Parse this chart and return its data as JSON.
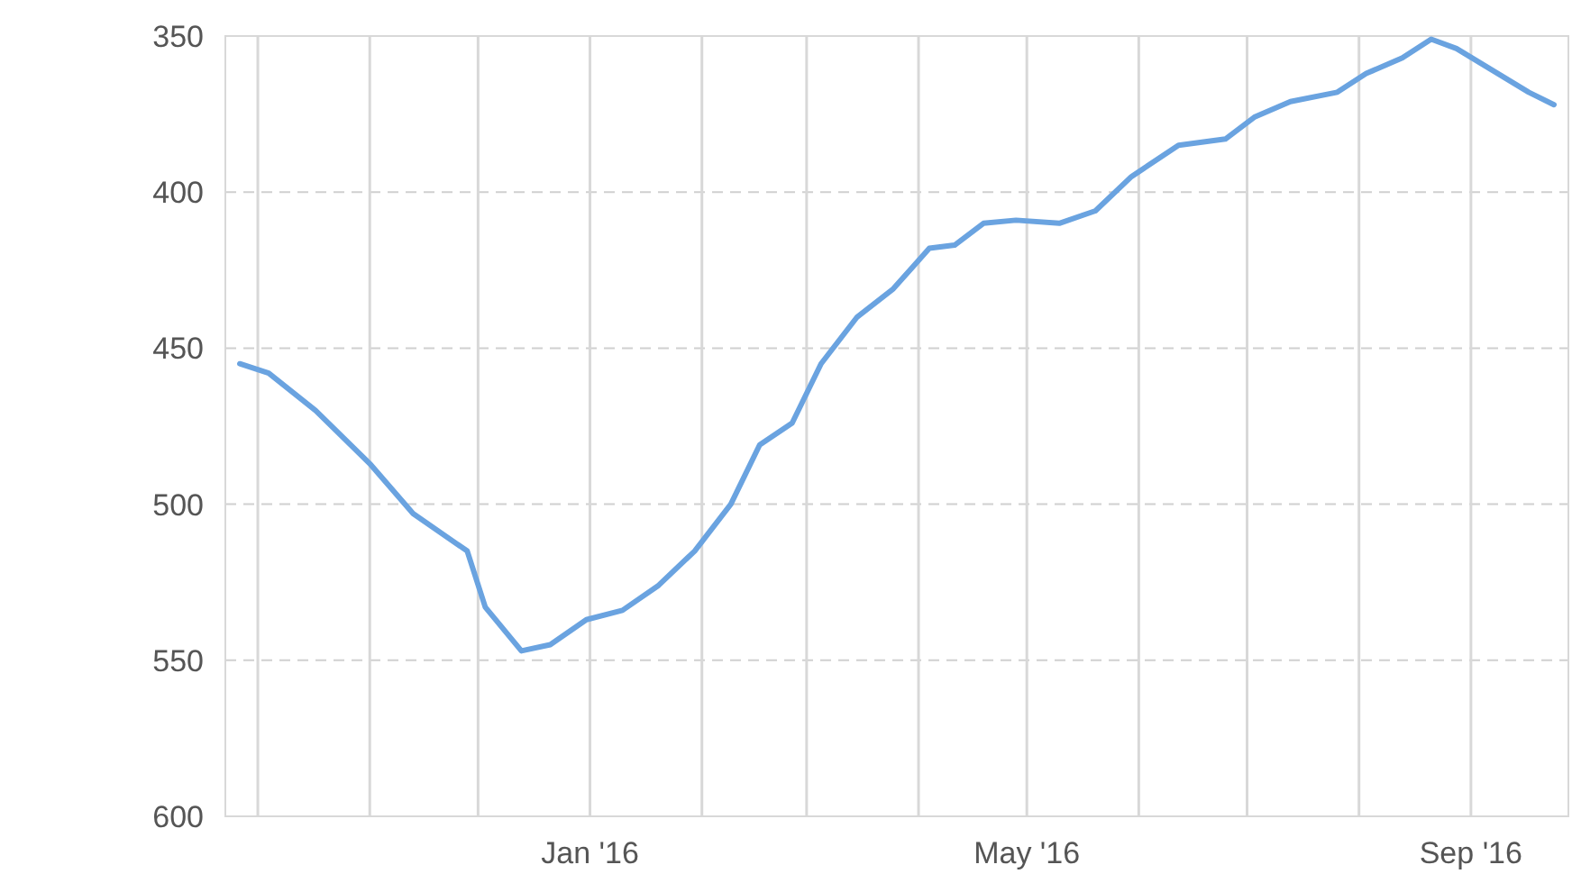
{
  "chart_data": {
    "type": "line",
    "x": [
      "2015-09-26",
      "2015-10-04",
      "2015-10-17",
      "2015-11-01",
      "2015-11-13",
      "2015-11-28",
      "2015-12-03",
      "2015-12-13",
      "2015-12-21",
      "2015-12-31",
      "2016-01-10",
      "2016-01-20",
      "2016-01-30",
      "2016-02-09",
      "2016-02-17",
      "2016-02-26",
      "2016-03-05",
      "2016-03-15",
      "2016-03-25",
      "2016-04-04",
      "2016-04-11",
      "2016-04-19",
      "2016-04-28",
      "2016-05-10",
      "2016-05-20",
      "2016-05-30",
      "2016-06-12",
      "2016-06-25",
      "2016-07-03",
      "2016-07-13",
      "2016-07-26",
      "2016-08-03",
      "2016-08-13",
      "2016-08-21",
      "2016-08-28",
      "2016-09-07",
      "2016-09-17",
      "2016-09-24"
    ],
    "series": [
      {
        "color": "#6aa3e0",
        "values": [
          455,
          458,
          470,
          487,
          503,
          515,
          533,
          547,
          545,
          537,
          534,
          526,
          515,
          500,
          481,
          474,
          455,
          440,
          431,
          418,
          417,
          410,
          409,
          410,
          406,
          395,
          385,
          383,
          376,
          371,
          368,
          362,
          357,
          351,
          354,
          361,
          368,
          372
        ]
      }
    ],
    "xlim": [
      "2015-09-22",
      "2016-09-28"
    ],
    "xticks": [
      {
        "value": "2015-10-01",
        "label": null
      },
      {
        "value": "2015-11-01",
        "label": null
      },
      {
        "value": "2015-12-01",
        "label": null
      },
      {
        "value": "2016-01-01",
        "label": "Jan '16"
      },
      {
        "value": "2016-02-01",
        "label": null
      },
      {
        "value": "2016-03-01",
        "label": null
      },
      {
        "value": "2016-04-01",
        "label": null
      },
      {
        "value": "2016-05-01",
        "label": "May '16"
      },
      {
        "value": "2016-06-01",
        "label": null
      },
      {
        "value": "2016-07-01",
        "label": null
      },
      {
        "value": "2016-08-01",
        "label": null
      },
      {
        "value": "2016-09-01",
        "label": "Sep '16"
      }
    ],
    "ylim": [
      600,
      350
    ],
    "yticks": [
      350,
      400,
      450,
      500,
      550,
      600
    ],
    "grid": true,
    "line_style": "solid",
    "marker": "none"
  }
}
